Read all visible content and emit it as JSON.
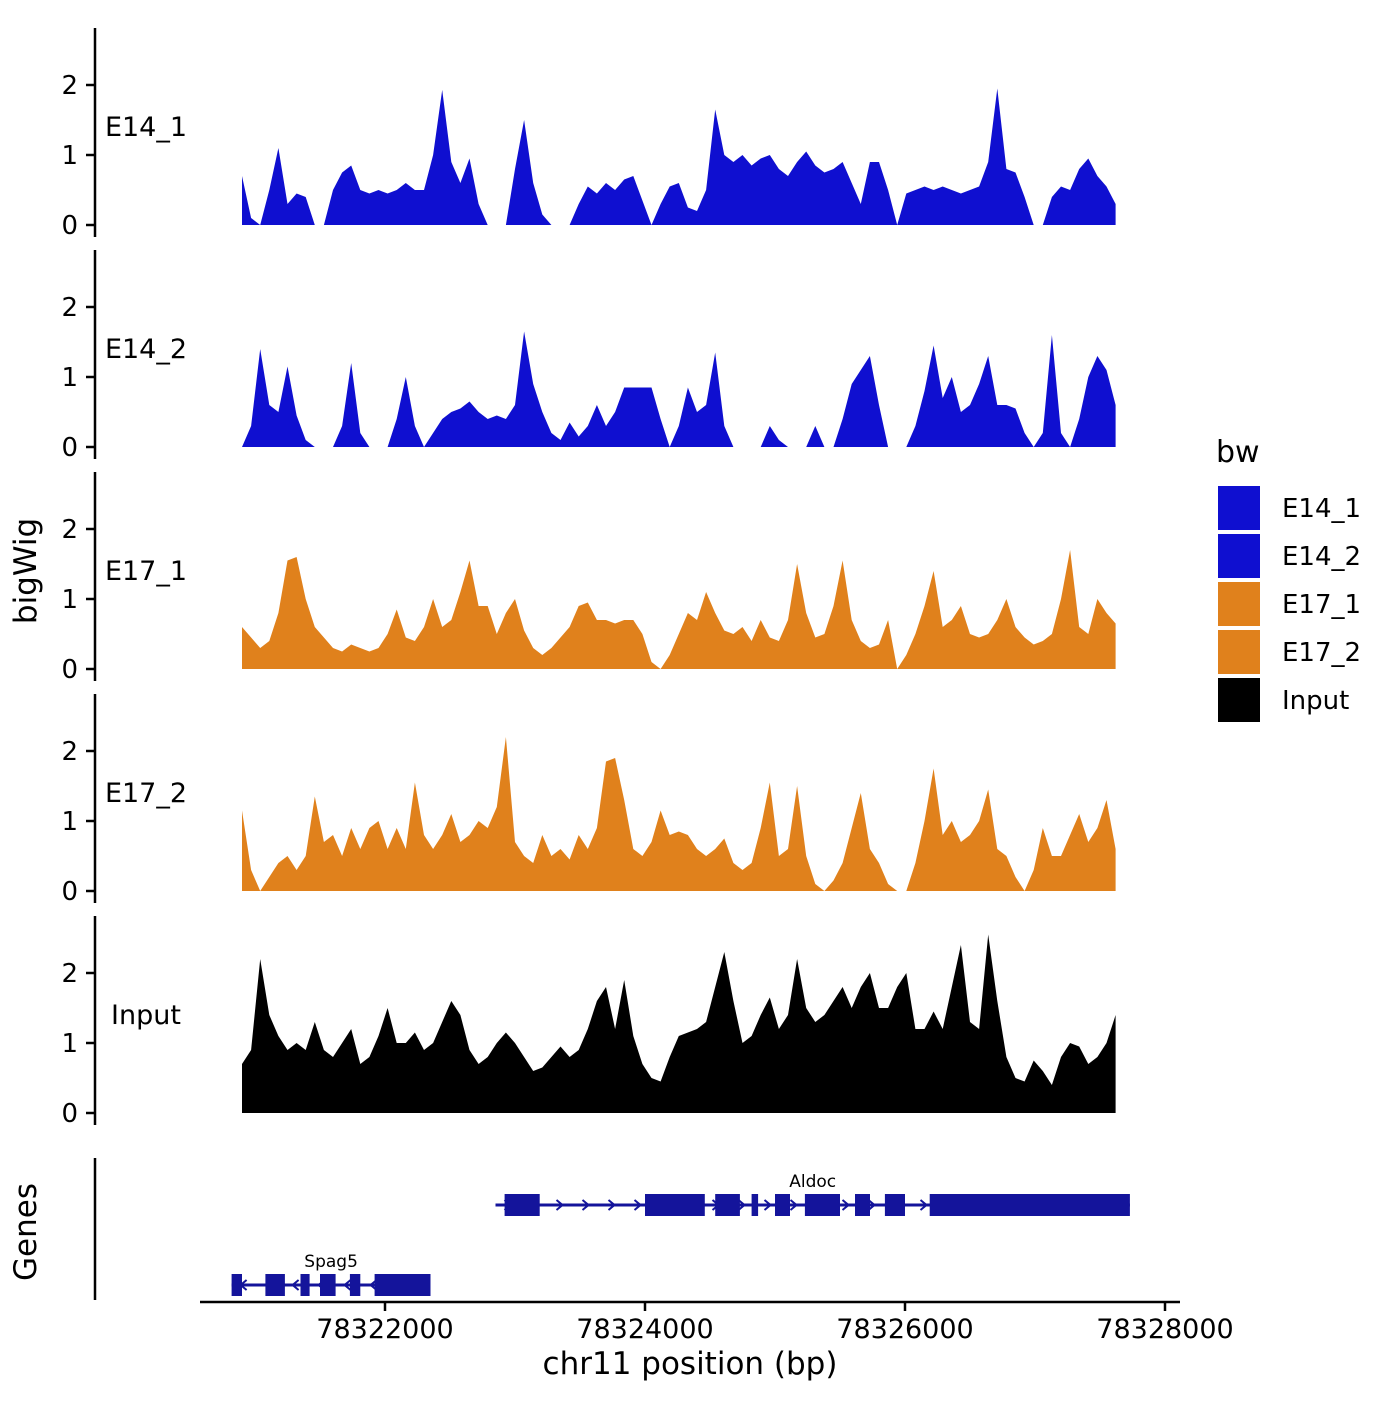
{
  "figure": {
    "background": "#ffffff"
  },
  "axes": {
    "y_title": "bigWig",
    "genes_title": "Genes",
    "x_title": "chr11 position (bp)",
    "x_tick_labels": [
      "78322000",
      "78324000",
      "78326000",
      "78328000"
    ],
    "y_tick_labels": [
      "0",
      "1",
      "2"
    ]
  },
  "legend": {
    "title": "bw",
    "entries": [
      {
        "label": "E14_1",
        "color": "#0f0fd0"
      },
      {
        "label": "E14_2",
        "color": "#0f0fd0"
      },
      {
        "label": "E17_1",
        "color": "#e0811c"
      },
      {
        "label": "E17_2",
        "color": "#e0811c"
      },
      {
        "label": "Input",
        "color": "#000000"
      }
    ]
  },
  "chart_data": {
    "type": "area",
    "title": "",
    "x_axis": {
      "label": "chr11 position (bp)",
      "start": 78320900,
      "step": 70,
      "ticks": [
        78322000,
        78324000,
        78326000,
        78328000
      ],
      "range": [
        78320500,
        78328300
      ]
    },
    "y_axis": {
      "label": "bigWig",
      "ticks": [
        0,
        1,
        2
      ],
      "range": [
        0,
        2.6
      ]
    },
    "gene_color": "#14149b",
    "series": [
      {
        "name": "E14_1",
        "color": "#0f0fd0",
        "values": [
          0.7,
          0.1,
          0,
          0.5,
          1.1,
          0.3,
          0.45,
          0.4,
          0,
          0,
          0.5,
          0.75,
          0.85,
          0.5,
          0.45,
          0.5,
          0.45,
          0.5,
          0.6,
          0.5,
          0.5,
          1.0,
          1.93,
          0.9,
          0.6,
          0.95,
          0.3,
          0,
          0,
          0,
          0.8,
          1.5,
          0.6,
          0.15,
          0,
          0,
          0,
          0.3,
          0.55,
          0.45,
          0.6,
          0.5,
          0.65,
          0.7,
          0.35,
          0,
          0.3,
          0.55,
          0.6,
          0.25,
          0.2,
          0.5,
          1.65,
          1.0,
          0.9,
          1.0,
          0.85,
          0.95,
          1.0,
          0.8,
          0.7,
          0.9,
          1.05,
          0.85,
          0.75,
          0.8,
          0.9,
          0.6,
          0.3,
          0.9,
          0.9,
          0.5,
          0,
          0.45,
          0.5,
          0.55,
          0.5,
          0.55,
          0.5,
          0.45,
          0.5,
          0.55,
          0.9,
          1.95,
          0.8,
          0.75,
          0.4,
          0,
          0,
          0.4,
          0.55,
          0.5,
          0.8,
          0.95,
          0.7,
          0.55,
          0.3
        ]
      },
      {
        "name": "E14_2",
        "color": "#0f0fd0",
        "values": [
          0,
          0.3,
          1.4,
          0.6,
          0.5,
          1.15,
          0.45,
          0.1,
          0,
          0,
          0,
          0.3,
          1.2,
          0.2,
          0,
          0,
          0,
          0.4,
          1.0,
          0.3,
          0,
          0.2,
          0.4,
          0.5,
          0.55,
          0.65,
          0.5,
          0.4,
          0.45,
          0.4,
          0.6,
          1.65,
          0.9,
          0.5,
          0.2,
          0.1,
          0.35,
          0.15,
          0.3,
          0.6,
          0.3,
          0.5,
          0.85,
          0.85,
          0.85,
          0.85,
          0.4,
          0,
          0.3,
          0.85,
          0.5,
          0.6,
          1.35,
          0.3,
          0,
          0,
          0,
          0,
          0.3,
          0.1,
          0,
          0,
          0,
          0.3,
          0,
          0,
          0.4,
          0.9,
          1.1,
          1.3,
          0.6,
          0,
          0,
          0,
          0.3,
          0.8,
          1.45,
          0.7,
          1.0,
          0.5,
          0.6,
          0.9,
          1.3,
          0.6,
          0.6,
          0.55,
          0.2,
          0,
          0.2,
          1.6,
          0.2,
          0,
          0.4,
          1.0,
          1.3,
          1.1,
          0.6
        ]
      },
      {
        "name": "E17_1",
        "color": "#e0811c",
        "values": [
          0.6,
          0.45,
          0.3,
          0.4,
          0.8,
          1.55,
          1.6,
          1.0,
          0.6,
          0.45,
          0.3,
          0.25,
          0.35,
          0.3,
          0.25,
          0.3,
          0.5,
          0.85,
          0.45,
          0.4,
          0.6,
          1.0,
          0.6,
          0.7,
          1.1,
          1.55,
          0.9,
          0.9,
          0.5,
          0.8,
          1.0,
          0.55,
          0.3,
          0.2,
          0.3,
          0.45,
          0.6,
          0.9,
          0.95,
          0.7,
          0.7,
          0.65,
          0.7,
          0.7,
          0.5,
          0.1,
          0,
          0.2,
          0.5,
          0.8,
          0.7,
          1.1,
          0.8,
          0.55,
          0.5,
          0.6,
          0.4,
          0.7,
          0.45,
          0.4,
          0.7,
          1.5,
          0.8,
          0.45,
          0.5,
          0.9,
          1.55,
          0.7,
          0.4,
          0.3,
          0.35,
          0.7,
          0,
          0.2,
          0.5,
          0.9,
          1.4,
          0.6,
          0.7,
          0.9,
          0.5,
          0.45,
          0.5,
          0.7,
          1.0,
          0.6,
          0.45,
          0.35,
          0.4,
          0.5,
          1.0,
          1.7,
          0.6,
          0.5,
          1.0,
          0.8,
          0.65
        ]
      },
      {
        "name": "E17_2",
        "color": "#e0811c",
        "values": [
          1.15,
          0.3,
          0,
          0.2,
          0.4,
          0.5,
          0.3,
          0.5,
          1.35,
          0.7,
          0.8,
          0.5,
          0.9,
          0.6,
          0.9,
          1.0,
          0.6,
          0.9,
          0.6,
          1.55,
          0.8,
          0.6,
          0.8,
          1.1,
          0.7,
          0.8,
          1.0,
          0.9,
          1.2,
          2.2,
          0.7,
          0.5,
          0.4,
          0.8,
          0.5,
          0.6,
          0.45,
          0.8,
          0.6,
          0.9,
          1.85,
          1.9,
          1.3,
          0.6,
          0.5,
          0.7,
          1.15,
          0.8,
          0.85,
          0.8,
          0.6,
          0.5,
          0.6,
          0.75,
          0.4,
          0.3,
          0.4,
          0.9,
          1.55,
          0.5,
          0.6,
          1.5,
          0.5,
          0.1,
          0,
          0.15,
          0.4,
          0.9,
          1.4,
          0.6,
          0.4,
          0.1,
          0,
          0,
          0.4,
          1.0,
          1.75,
          0.8,
          1.0,
          0.7,
          0.8,
          1.0,
          1.45,
          0.6,
          0.5,
          0.2,
          0,
          0.3,
          0.9,
          0.5,
          0.5,
          0.8,
          1.1,
          0.7,
          0.9,
          1.3,
          0.6
        ]
      },
      {
        "name": "Input",
        "color": "#000000",
        "values": [
          0.7,
          0.9,
          2.2,
          1.4,
          1.1,
          0.9,
          1.0,
          0.9,
          1.3,
          0.9,
          0.8,
          1.0,
          1.2,
          0.7,
          0.8,
          1.1,
          1.5,
          1.0,
          1.0,
          1.15,
          0.9,
          1.0,
          1.3,
          1.6,
          1.4,
          0.9,
          0.7,
          0.8,
          1.0,
          1.15,
          1.0,
          0.8,
          0.6,
          0.65,
          0.8,
          0.95,
          0.8,
          0.9,
          1.2,
          1.6,
          1.8,
          1.2,
          1.9,
          1.1,
          0.7,
          0.5,
          0.45,
          0.8,
          1.1,
          1.15,
          1.2,
          1.3,
          1.8,
          2.3,
          1.6,
          1.0,
          1.1,
          1.4,
          1.65,
          1.2,
          1.4,
          2.2,
          1.5,
          1.3,
          1.4,
          1.6,
          1.8,
          1.5,
          1.8,
          2.0,
          1.5,
          1.5,
          1.8,
          2.0,
          1.2,
          1.2,
          1.45,
          1.2,
          1.8,
          2.4,
          1.3,
          1.2,
          2.55,
          1.6,
          0.8,
          0.5,
          0.45,
          0.75,
          0.6,
          0.4,
          0.8,
          1.0,
          0.95,
          0.7,
          0.8,
          1.0,
          1.4
        ]
      }
    ],
    "genes": [
      {
        "name": "Aldoc",
        "strand": "+",
        "row": 0,
        "start": 78322850,
        "end": 78327730,
        "exons": [
          [
            78322920,
            78323190
          ],
          [
            78324000,
            78324460
          ],
          [
            78324540,
            78324730
          ],
          [
            78324820,
            78324870
          ],
          [
            78325000,
            78325115
          ],
          [
            78325230,
            78325500
          ],
          [
            78325615,
            78325730
          ],
          [
            78325845,
            78326000
          ],
          [
            78326190,
            78327730
          ]
        ]
      },
      {
        "name": "Spag5",
        "strand": "-",
        "row": 1,
        "start": 78320820,
        "end": 78322350,
        "exons": [
          [
            78320820,
            78320900
          ],
          [
            78321080,
            78321230
          ],
          [
            78321350,
            78321420
          ],
          [
            78321500,
            78321620
          ],
          [
            78321730,
            78321810
          ],
          [
            78321920,
            78322350
          ]
        ]
      }
    ]
  }
}
